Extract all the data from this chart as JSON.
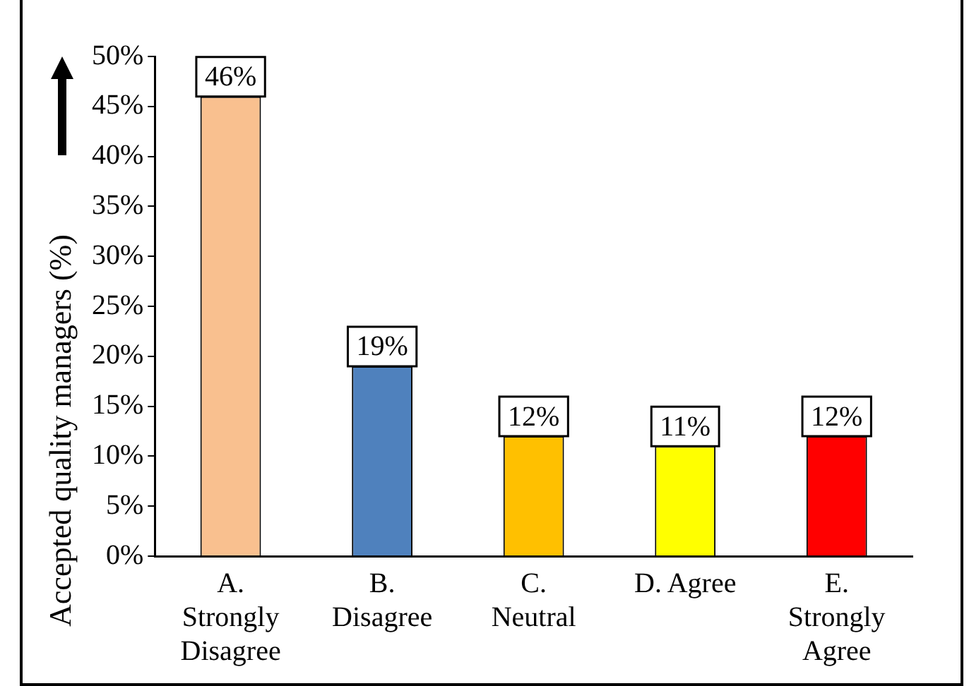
{
  "chart_data": {
    "type": "bar",
    "ylabel": "Accepted quality managers (%)",
    "categories": [
      "A. Strongly Disagree",
      "B. Disagree",
      "C. Neutral",
      "D. Agree",
      "E. Strongly Agree"
    ],
    "values": [
      46,
      19,
      12,
      11,
      12
    ],
    "colors": [
      "#f9c08f",
      "#4f81bd",
      "#ffc000",
      "#ffff00",
      "#ff0000"
    ],
    "value_labels": [
      "46%",
      "19%",
      "12%",
      "11%",
      "12%"
    ],
    "ylim": [
      0,
      50
    ],
    "yticks": [
      {
        "value": 0,
        "label": "0%"
      },
      {
        "value": 5,
        "label": "5%"
      },
      {
        "value": 10,
        "label": "10%"
      },
      {
        "value": 15,
        "label": "15%"
      },
      {
        "value": 20,
        "label": "20%"
      },
      {
        "value": 25,
        "label": "25%"
      },
      {
        "value": 30,
        "label": "30%"
      },
      {
        "value": 35,
        "label": "35%"
      },
      {
        "value": 40,
        "label": "40%"
      },
      {
        "value": 45,
        "label": "45%"
      },
      {
        "value": 50,
        "label": "50%"
      }
    ],
    "grid": false,
    "legend": false
  }
}
